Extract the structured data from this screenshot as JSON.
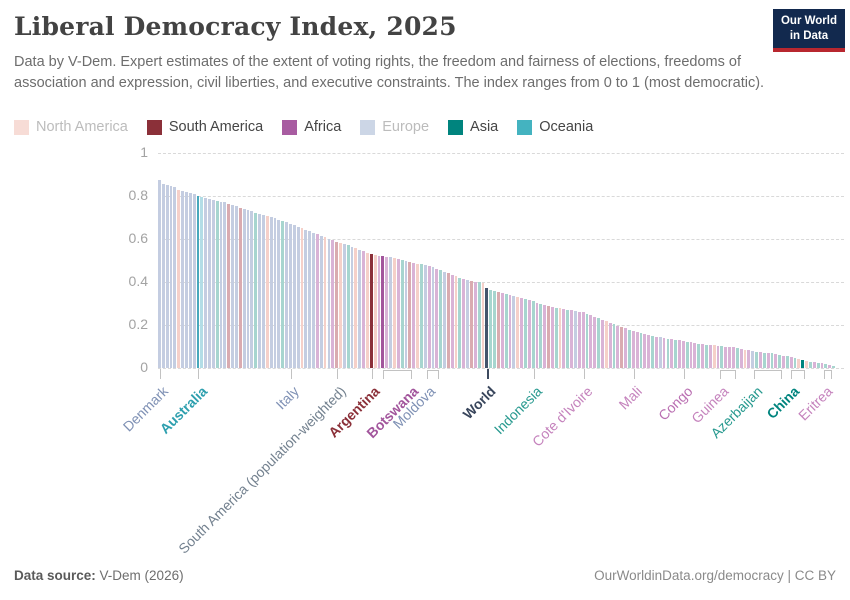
{
  "header": {
    "title": "Liberal Democracy Index, 2025",
    "subtitle": "Data by V-Dem. Expert estimates of the extent of voting rights, the freedom and fairness of elections, freedoms of association and expression, civil liberties, and executive constraints. The index ranges from 0 to 1 (most democratic).",
    "logo": {
      "line1": "Our World",
      "line2": "in Data",
      "bg_color": "#12294e",
      "stripe_color": "#b8272f"
    }
  },
  "legend": [
    {
      "label": "North America",
      "swatch": "#f7dcd6",
      "active": false
    },
    {
      "label": "South America",
      "swatch": "#8b3039",
      "active": true
    },
    {
      "label": "Africa",
      "swatch": "#a85ca1",
      "active": true
    },
    {
      "label": "Europe",
      "swatch": "#ccd6e6",
      "active": false
    },
    {
      "label": "Asia",
      "swatch": "#00847e",
      "active": true
    },
    {
      "label": "Oceania",
      "swatch": "#44b3c0",
      "active": true
    }
  ],
  "chart_data": {
    "type": "bar",
    "title": "Liberal Democracy Index, 2025",
    "xlabel": "",
    "ylabel": "",
    "ylim": [
      0,
      1
    ],
    "yticks": [
      0,
      0.2,
      0.4,
      0.6,
      0.8,
      1
    ],
    "grid": true,
    "legend_position": "top",
    "continent_codes": {
      "E": "Europe",
      "N": "North America",
      "A": "Africa",
      "I": "Asia",
      "O": "Oceania",
      "S": "South America",
      "W": "World"
    },
    "colors": {
      "faded": {
        "E": "#c4cde1",
        "N": "#f5d0c9",
        "A": "#d9b3d6",
        "I": "#a7d5cf",
        "O": "#b3dde6",
        "S": "#d9abb0",
        "W": "#44546b"
      },
      "full": {
        "E": "#4c6a9c",
        "N": "#e56e5a",
        "A": "#a2559c",
        "I": "#00847e",
        "O": "#48a8bc",
        "S": "#8b3039",
        "W": "#44546b"
      }
    },
    "highlight_indices": [
      10,
      55,
      58,
      85,
      167
    ],
    "bars": [
      [
        0.875,
        "E"
      ],
      [
        0.855,
        "E"
      ],
      [
        0.85,
        "E"
      ],
      [
        0.845,
        "E"
      ],
      [
        0.84,
        "E"
      ],
      [
        0.83,
        "N"
      ],
      [
        0.825,
        "E"
      ],
      [
        0.82,
        "E"
      ],
      [
        0.815,
        "E"
      ],
      [
        0.807,
        "E"
      ],
      [
        0.8,
        "O"
      ],
      [
        0.795,
        "O"
      ],
      [
        0.79,
        "E"
      ],
      [
        0.786,
        "E"
      ],
      [
        0.782,
        "E"
      ],
      [
        0.778,
        "I"
      ],
      [
        0.774,
        "E"
      ],
      [
        0.77,
        "E"
      ],
      [
        0.765,
        "S"
      ],
      [
        0.76,
        "E"
      ],
      [
        0.752,
        "E"
      ],
      [
        0.745,
        "S"
      ],
      [
        0.74,
        "E"
      ],
      [
        0.735,
        "E"
      ],
      [
        0.728,
        "E"
      ],
      [
        0.722,
        "I"
      ],
      [
        0.717,
        "E"
      ],
      [
        0.712,
        "E"
      ],
      [
        0.707,
        "N"
      ],
      [
        0.702,
        "E"
      ],
      [
        0.697,
        "E"
      ],
      [
        0.69,
        "E"
      ],
      [
        0.684,
        "I"
      ],
      [
        0.678,
        "E"
      ],
      [
        0.67,
        "E"
      ],
      [
        0.663,
        "E"
      ],
      [
        0.656,
        "E"
      ],
      [
        0.65,
        "N"
      ],
      [
        0.644,
        "E"
      ],
      [
        0.637,
        "E"
      ],
      [
        0.63,
        "E"
      ],
      [
        0.622,
        "A"
      ],
      [
        0.615,
        "E"
      ],
      [
        0.608,
        "N"
      ],
      [
        0.601,
        "E"
      ],
      [
        0.594,
        "A"
      ],
      [
        0.587,
        "S"
      ],
      [
        0.58,
        "N"
      ],
      [
        0.575,
        "E"
      ],
      [
        0.57,
        "I"
      ],
      [
        0.565,
        "E"
      ],
      [
        0.558,
        "N"
      ],
      [
        0.55,
        "E"
      ],
      [
        0.543,
        "A"
      ],
      [
        0.536,
        "N"
      ],
      [
        0.528,
        "S"
      ],
      [
        0.525,
        "N"
      ],
      [
        0.522,
        "A"
      ],
      [
        0.52,
        "A"
      ],
      [
        0.517,
        "A"
      ],
      [
        0.514,
        "E"
      ],
      [
        0.51,
        "N"
      ],
      [
        0.506,
        "A"
      ],
      [
        0.502,
        "I"
      ],
      [
        0.498,
        "E"
      ],
      [
        0.494,
        "S"
      ],
      [
        0.49,
        "A"
      ],
      [
        0.486,
        "N"
      ],
      [
        0.482,
        "I"
      ],
      [
        0.478,
        "E"
      ],
      [
        0.474,
        "A"
      ],
      [
        0.47,
        "E"
      ],
      [
        0.462,
        "A"
      ],
      [
        0.455,
        "I"
      ],
      [
        0.448,
        "E"
      ],
      [
        0.44,
        "S"
      ],
      [
        0.433,
        "A"
      ],
      [
        0.426,
        "N"
      ],
      [
        0.42,
        "I"
      ],
      [
        0.414,
        "A"
      ],
      [
        0.408,
        "E"
      ],
      [
        0.403,
        "S"
      ],
      [
        0.4,
        "A"
      ],
      [
        0.398,
        "I"
      ],
      [
        0.396,
        "N"
      ],
      [
        0.372,
        "W"
      ],
      [
        0.362,
        "I"
      ],
      [
        0.357,
        "I"
      ],
      [
        0.353,
        "S"
      ],
      [
        0.349,
        "A"
      ],
      [
        0.345,
        "I"
      ],
      [
        0.34,
        "A"
      ],
      [
        0.336,
        "E"
      ],
      [
        0.332,
        "N"
      ],
      [
        0.327,
        "A"
      ],
      [
        0.322,
        "I"
      ],
      [
        0.316,
        "A"
      ],
      [
        0.31,
        "I"
      ],
      [
        0.304,
        "A"
      ],
      [
        0.299,
        "I"
      ],
      [
        0.294,
        "A"
      ],
      [
        0.289,
        "S"
      ],
      [
        0.285,
        "A"
      ],
      [
        0.281,
        "I"
      ],
      [
        0.277,
        "N"
      ],
      [
        0.274,
        "A"
      ],
      [
        0.271,
        "I"
      ],
      [
        0.268,
        "A"
      ],
      [
        0.265,
        "E"
      ],
      [
        0.262,
        "A"
      ],
      [
        0.259,
        "A"
      ],
      [
        0.252,
        "I"
      ],
      [
        0.245,
        "A"
      ],
      [
        0.238,
        "A"
      ],
      [
        0.231,
        "I"
      ],
      [
        0.224,
        "A"
      ],
      [
        0.217,
        "N"
      ],
      [
        0.21,
        "A"
      ],
      [
        0.203,
        "I"
      ],
      [
        0.196,
        "A"
      ],
      [
        0.19,
        "S"
      ],
      [
        0.184,
        "A"
      ],
      [
        0.177,
        "I"
      ],
      [
        0.17,
        "A"
      ],
      [
        0.166,
        "A"
      ],
      [
        0.162,
        "I"
      ],
      [
        0.158,
        "A"
      ],
      [
        0.154,
        "A"
      ],
      [
        0.15,
        "I"
      ],
      [
        0.146,
        "A"
      ],
      [
        0.143,
        "E"
      ],
      [
        0.14,
        "A"
      ],
      [
        0.137,
        "I"
      ],
      [
        0.134,
        "A"
      ],
      [
        0.131,
        "I"
      ],
      [
        0.128,
        "A"
      ],
      [
        0.125,
        "A"
      ],
      [
        0.122,
        "I"
      ],
      [
        0.119,
        "A"
      ],
      [
        0.116,
        "A"
      ],
      [
        0.113,
        "I"
      ],
      [
        0.111,
        "A"
      ],
      [
        0.109,
        "I"
      ],
      [
        0.107,
        "A"
      ],
      [
        0.105,
        "N"
      ],
      [
        0.103,
        "A"
      ],
      [
        0.101,
        "I"
      ],
      [
        0.1,
        "A"
      ],
      [
        0.099,
        "A"
      ],
      [
        0.098,
        "A"
      ],
      [
        0.094,
        "I"
      ],
      [
        0.09,
        "A"
      ],
      [
        0.086,
        "N"
      ],
      [
        0.082,
        "A"
      ],
      [
        0.078,
        "E"
      ],
      [
        0.075,
        "I"
      ],
      [
        0.073,
        "A"
      ],
      [
        0.071,
        "I"
      ],
      [
        0.07,
        "A"
      ],
      [
        0.068,
        "I"
      ],
      [
        0.065,
        "A"
      ],
      [
        0.062,
        "I"
      ],
      [
        0.058,
        "A"
      ],
      [
        0.054,
        "I"
      ],
      [
        0.05,
        "A"
      ],
      [
        0.046,
        "I"
      ],
      [
        0.042,
        "N"
      ],
      [
        0.038,
        "I"
      ],
      [
        0.034,
        "N"
      ],
      [
        0.03,
        "I"
      ],
      [
        0.027,
        "A"
      ],
      [
        0.024,
        "I"
      ],
      [
        0.021,
        "A"
      ],
      [
        0.018,
        "I"
      ],
      [
        0.015,
        "A"
      ],
      [
        0.01,
        "I"
      ]
    ],
    "x_labels": [
      {
        "name": "Denmark",
        "index": 0,
        "color": "#7e90b4",
        "bold": false,
        "offset": 0
      },
      {
        "name": "Australia",
        "index": 10,
        "color": "#2d9fae",
        "bold": true,
        "offset": 0
      },
      {
        "name": "Italy",
        "index": 34,
        "color": "#7e90b4",
        "bold": false,
        "offset": 0
      },
      {
        "name": "South America (population-weighted)",
        "index": 46,
        "color": "#73818f",
        "bold": false,
        "offset": 0
      },
      {
        "name": "Argentina",
        "index": 55,
        "color": "#8b3039",
        "bold": true,
        "offset": 0
      },
      {
        "name": "Botswana",
        "index": 58,
        "color": "#a2559c",
        "bold": true,
        "offset": 27,
        "bracket": true
      },
      {
        "name": "Moldova",
        "index": 72,
        "color": "#7e90b4",
        "bold": false,
        "offset": -10,
        "bracket": true
      },
      {
        "name": "World",
        "index": 85,
        "color": "#39465c",
        "bold": true,
        "offset": 0,
        "thick": true
      },
      {
        "name": "Indonesia",
        "index": 97,
        "color": "#27998f",
        "bold": false,
        "offset": 0
      },
      {
        "name": "Cote d'Ivoire",
        "index": 110,
        "color": "#c583bd",
        "bold": false,
        "offset": 0
      },
      {
        "name": "Mali",
        "index": 123,
        "color": "#c583bd",
        "bold": false,
        "offset": 0
      },
      {
        "name": "Congo",
        "index": 136,
        "color": "#ba6fb2",
        "bold": false,
        "offset": 0
      },
      {
        "name": "Guinea",
        "index": 149,
        "color": "#c583bd",
        "bold": false,
        "offset": -14,
        "bracket": true
      },
      {
        "name": "Azerbaijan",
        "index": 161,
        "color": "#27998f",
        "bold": false,
        "offset": -26,
        "bracket": true
      },
      {
        "name": "China",
        "index": 167,
        "color": "#00847e",
        "bold": true,
        "offset": -12,
        "bracket": true
      },
      {
        "name": "Eritrea",
        "index": 174,
        "color": "#c583bd",
        "bold": false,
        "offset": -6,
        "bracket": true
      }
    ]
  },
  "footer": {
    "source_label": "Data source:",
    "source_value": "V-Dem (2026)",
    "right": "OurWorldinData.org/democracy | CC BY"
  }
}
